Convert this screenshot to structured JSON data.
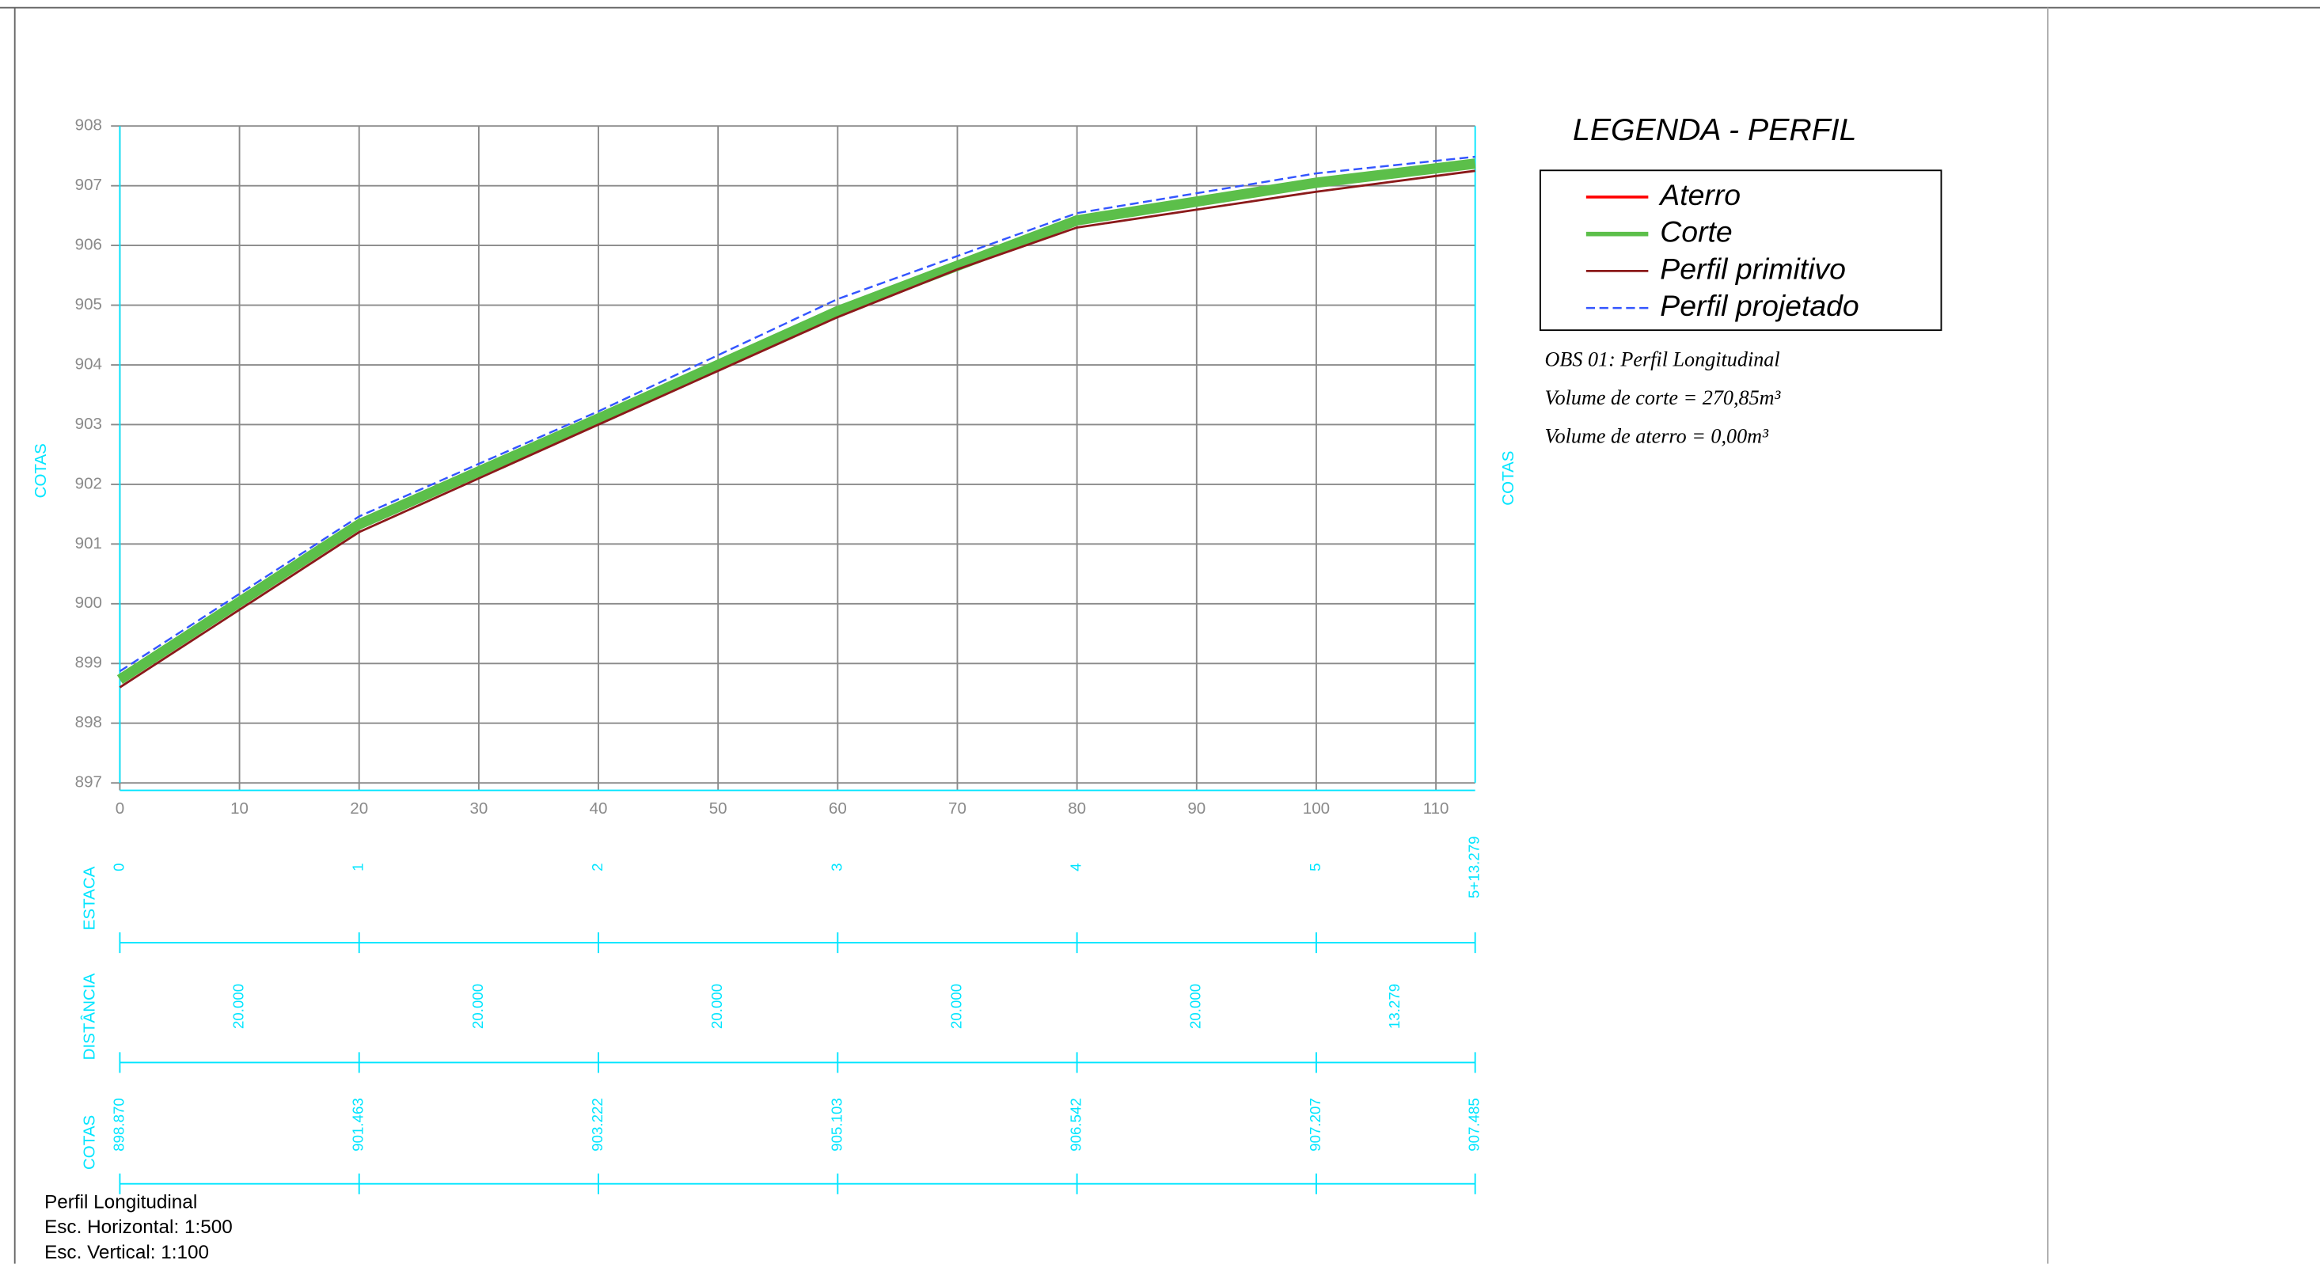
{
  "chart_data": {
    "type": "line",
    "xlim": [
      0,
      113.279
    ],
    "xticks": [
      0,
      10,
      20,
      30,
      40,
      50,
      60,
      70,
      80,
      90,
      100,
      110
    ],
    "ylim": [
      897,
      908
    ],
    "yticks": [
      897,
      898,
      899,
      900,
      901,
      902,
      903,
      904,
      905,
      906,
      907,
      908
    ],
    "ylabel": "COTAS",
    "grid": true,
    "series": [
      {
        "name": "Aterro",
        "color": "#ff0000",
        "x": [],
        "values": []
      },
      {
        "name": "Corte",
        "color": "#5cbf4a",
        "x": [
          0,
          20,
          40,
          60,
          80,
          100,
          113.279
        ],
        "values": [
          898.73,
          901.33,
          903.1,
          904.9,
          906.42,
          907.05,
          907.37
        ]
      },
      {
        "name": "Perfil primitivo",
        "color": "#8b1a1a",
        "x": [
          0,
          10,
          20,
          30,
          40,
          50,
          60,
          70,
          80,
          90,
          100,
          113.279
        ],
        "values": [
          898.6,
          899.9,
          901.2,
          902.1,
          903.0,
          903.9,
          904.8,
          905.6,
          906.3,
          906.6,
          906.9,
          907.25
        ]
      },
      {
        "name": "Perfil projetado",
        "color": "#3355ff",
        "x": [
          0,
          20,
          40,
          60,
          80,
          100,
          113.279
        ],
        "values": [
          898.87,
          901.463,
          903.222,
          905.103,
          906.542,
          907.207,
          907.485
        ],
        "value_labels": [
          "898.870",
          "901.463",
          "903.222",
          "905.103",
          "906.542",
          "907.207",
          "907.485"
        ]
      }
    ],
    "legend_title": "LEGENDA - PERFIL",
    "annotations": [
      "OBS 01: Perfil Longitudinal",
      "Volume de corte = 270,85m³",
      "Volume de aterro = 0,00m³"
    ]
  },
  "table": {
    "estaca_label": "ESTACA",
    "estacas": [
      "0",
      "1",
      "2",
      "3",
      "4",
      "5",
      "5+13.279"
    ],
    "distancia_label": "DISTÂNCIA",
    "distancias": [
      20,
      20,
      20,
      20,
      20,
      13.279
    ],
    "distancia_labels": [
      "20.000",
      "20.000",
      "20.000",
      "20.000",
      "20.000",
      "13.279"
    ],
    "cotas_label": "COTAS"
  },
  "footer": [
    "Perfil Longitudinal",
    "Esc. Horizontal: 1:500",
    "Esc. Vertical: 1:100"
  ]
}
